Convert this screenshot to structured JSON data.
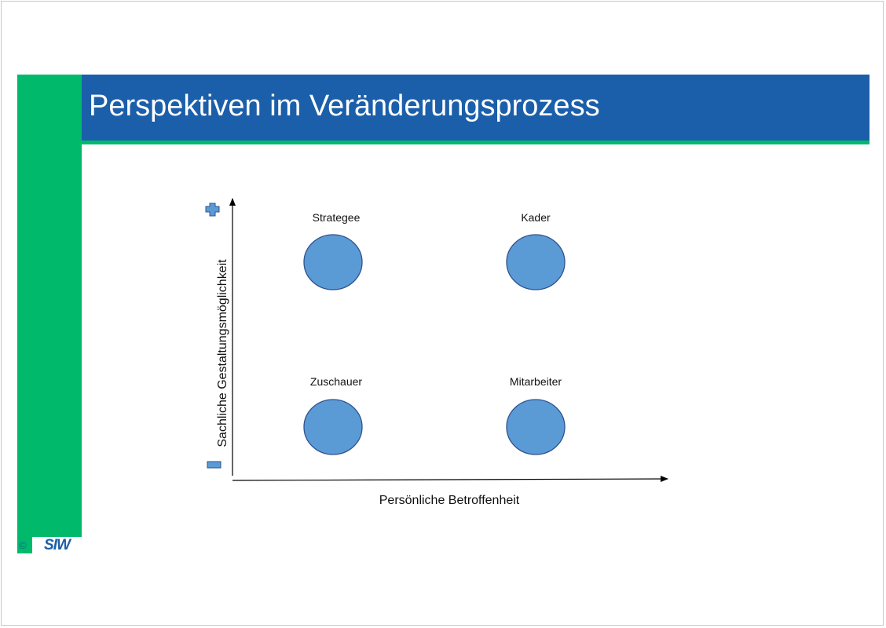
{
  "slide": {
    "title": "Perspektiven im Veränderungsprozess",
    "copyright": "©",
    "logo_text": "SIW"
  },
  "diagram": {
    "x_axis_label": "Persönliche Betroffenheit",
    "y_axis_label": "Sachliche Gestaltungsmöglichkeit",
    "plus_icon": "plus-icon",
    "minus_icon": "minus-icon",
    "quadrants": [
      {
        "label": "Strategee"
      },
      {
        "label": "Kader"
      },
      {
        "label": "Zuschauer"
      },
      {
        "label": "Mitarbeiter"
      }
    ],
    "colors": {
      "circle_fill": "#5b9bd5",
      "circle_stroke": "#2f528f",
      "icon_fill": "#5b9bd5",
      "title_band": "#1b5faa",
      "accent_green": "#00b96b"
    }
  }
}
